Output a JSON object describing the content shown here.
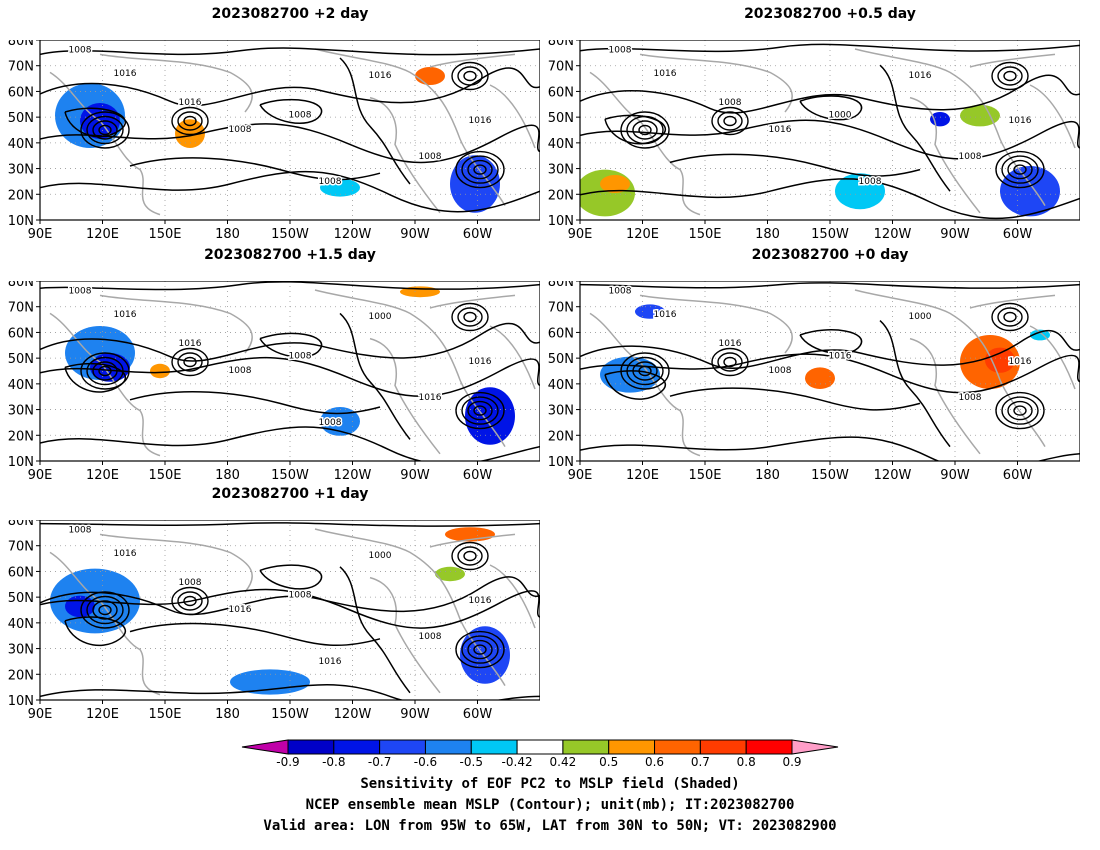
{
  "panels": [
    {
      "title": "2023082700 +2 day",
      "labels": [
        "1008",
        "1016",
        "1016",
        "1008",
        "1008",
        "1016",
        "1008",
        "1016",
        "1008"
      ]
    },
    {
      "title": "2023082700 +0.5 day",
      "labels": [
        "1008",
        "1016",
        "1008",
        "1016",
        "1000",
        "1016",
        "1008",
        "1016",
        "1008"
      ]
    },
    {
      "title": "2023082700 +1.5 day",
      "labels": [
        "1008",
        "1016",
        "1016",
        "1008",
        "1008",
        "1000",
        "1016",
        "1016",
        "1008"
      ]
    },
    {
      "title": "2023082700 +0 day",
      "labels": [
        "1008",
        "1016",
        "1016",
        "1008",
        "1016",
        "1000",
        "1008",
        "1016"
      ]
    },
    {
      "title": "2023082700 +1 day",
      "labels": [
        "1008",
        "1016",
        "1008",
        "1016",
        "1008",
        "1000",
        "1008",
        "1016",
        "1016"
      ]
    }
  ],
  "axes": {
    "y_ticks": [
      "80N",
      "70N",
      "60N",
      "50N",
      "40N",
      "30N",
      "20N",
      "10N"
    ],
    "x_ticks": [
      "90E",
      "120E",
      "150E",
      "180",
      "150W",
      "120W",
      "90W",
      "60W"
    ]
  },
  "colorbar": {
    "ticks": [
      "-0.9",
      "-0.8",
      "-0.7",
      "-0.6",
      "-0.5",
      "-0.42",
      "0.42",
      "0.5",
      "0.6",
      "0.7",
      "0.8",
      "0.9"
    ],
    "colors": {
      "lt_-0.9": "#c000a8",
      "-0.9_-0.8": "#0000c8",
      "-0.8_-0.7": "#0014e6",
      "-0.7_-0.6": "#1e46f5",
      "-0.6_-0.5": "#1e82f0",
      "-0.5_-0.42": "#00c8f5",
      "-0.42_0.42": "#ffffff",
      "0.42_0.5": "#96c828",
      "0.5_0.6": "#ff9600",
      "0.6_0.7": "#ff6400",
      "0.7_0.8": "#ff3c00",
      "0.8_0.9": "#ff0000",
      "gt_0.9": "#ff9ec8"
    }
  },
  "caption": {
    "line1": "Sensitivity of EOF PC2 to MSLP field (Shaded)",
    "line2": "NCEP ensemble mean MSLP (Contour); unit(mb); IT:2023082700",
    "line3": "Valid area: LON from 95W to 65W, LAT from 30N to 50N; VT: 2023082900"
  }
}
